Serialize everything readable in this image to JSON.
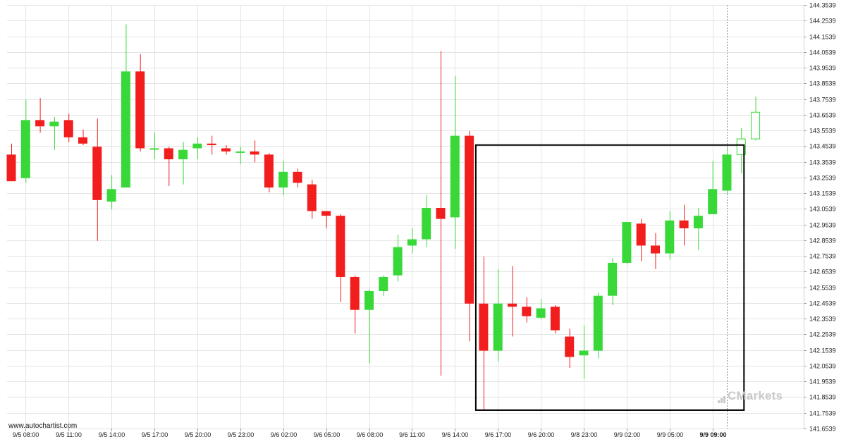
{
  "credit": "www.autochartist.com",
  "watermark": "Markets",
  "watermark_prefix": "C",
  "colors": {
    "up": "#39d839",
    "down": "#f21d1d",
    "grid": "#e4e4e4",
    "pattern": "#000000"
  },
  "chart_data": {
    "type": "candlestick",
    "y_ticks": [
      "144.3539",
      "144.2539",
      "144.1539",
      "144.0539",
      "143.9539",
      "143.8539",
      "143.7539",
      "143.6539",
      "143.5539",
      "143.4539",
      "143.3539",
      "143.2539",
      "143.1539",
      "143.0539",
      "142.9539",
      "142.8539",
      "142.7539",
      "142.6539",
      "142.5539",
      "142.4539",
      "142.3539",
      "142.2539",
      "142.1539",
      "142.0539",
      "141.9539",
      "141.8539",
      "141.7539",
      "141.6539"
    ],
    "ylim": [
      141.6539,
      144.3539
    ],
    "x_ticks": [
      {
        "index": 1,
        "label": "9/5 08:00"
      },
      {
        "index": 4,
        "label": "9/5 11:00"
      },
      {
        "index": 7,
        "label": "9/5 14:00"
      },
      {
        "index": 10,
        "label": "9/5 17:00"
      },
      {
        "index": 13,
        "label": "9/5 20:00"
      },
      {
        "index": 16,
        "label": "9/5 23:00"
      },
      {
        "index": 19,
        "label": "9/6 02:00"
      },
      {
        "index": 22,
        "label": "9/6 05:00"
      },
      {
        "index": 25,
        "label": "9/6 08:00"
      },
      {
        "index": 28,
        "label": "9/6 11:00"
      },
      {
        "index": 31,
        "label": "9/6 14:00"
      },
      {
        "index": 34,
        "label": "9/6 17:00"
      },
      {
        "index": 37,
        "label": "9/6 20:00"
      },
      {
        "index": 40,
        "label": "9/8 23:00"
      },
      {
        "index": 43,
        "label": "9/9 02:00"
      },
      {
        "index": 46,
        "label": "9/9 05:00"
      },
      {
        "index": 49,
        "label": "9/9 09:00",
        "bold": true
      }
    ],
    "candles": [
      {
        "o": 143.4,
        "h": 143.47,
        "l": 143.23,
        "c": 143.23
      },
      {
        "o": 143.25,
        "h": 143.75,
        "l": 143.22,
        "c": 143.62
      },
      {
        "o": 143.62,
        "h": 143.76,
        "l": 143.54,
        "c": 143.58
      },
      {
        "o": 143.58,
        "h": 143.64,
        "l": 143.43,
        "c": 143.61
      },
      {
        "o": 143.62,
        "h": 143.66,
        "l": 143.48,
        "c": 143.51
      },
      {
        "o": 143.51,
        "h": 143.56,
        "l": 143.46,
        "c": 143.47
      },
      {
        "o": 143.45,
        "h": 143.63,
        "l": 142.85,
        "c": 143.11
      },
      {
        "o": 143.1,
        "h": 143.27,
        "l": 143.05,
        "c": 143.18
      },
      {
        "o": 143.19,
        "h": 144.23,
        "l": 143.19,
        "c": 143.93
      },
      {
        "o": 143.93,
        "h": 144.04,
        "l": 143.42,
        "c": 143.44
      },
      {
        "o": 143.44,
        "h": 143.54,
        "l": 143.37,
        "c": 143.44
      },
      {
        "o": 143.44,
        "h": 143.45,
        "l": 143.2,
        "c": 143.37
      },
      {
        "o": 143.37,
        "h": 143.48,
        "l": 143.21,
        "c": 143.43
      },
      {
        "o": 143.44,
        "h": 143.51,
        "l": 143.37,
        "c": 143.47
      },
      {
        "o": 143.47,
        "h": 143.52,
        "l": 143.4,
        "c": 143.46
      },
      {
        "o": 143.44,
        "h": 143.46,
        "l": 143.4,
        "c": 143.42
      },
      {
        "o": 143.42,
        "h": 143.45,
        "l": 143.34,
        "c": 143.42
      },
      {
        "o": 143.42,
        "h": 143.49,
        "l": 143.35,
        "c": 143.4
      },
      {
        "o": 143.4,
        "h": 143.41,
        "l": 143.16,
        "c": 143.19
      },
      {
        "o": 143.19,
        "h": 143.36,
        "l": 143.14,
        "c": 143.29
      },
      {
        "o": 143.29,
        "h": 143.31,
        "l": 143.19,
        "c": 143.22
      },
      {
        "o": 143.21,
        "h": 143.24,
        "l": 142.99,
        "c": 143.04
      },
      {
        "o": 143.04,
        "h": 143.04,
        "l": 142.93,
        "c": 143.01
      },
      {
        "o": 143.01,
        "h": 143.02,
        "l": 142.46,
        "c": 142.62
      },
      {
        "o": 142.62,
        "h": 142.63,
        "l": 142.26,
        "c": 142.41
      },
      {
        "o": 142.41,
        "h": 142.54,
        "l": 142.07,
        "c": 142.53
      },
      {
        "o": 142.53,
        "h": 142.63,
        "l": 142.5,
        "c": 142.62
      },
      {
        "o": 142.63,
        "h": 142.89,
        "l": 142.59,
        "c": 142.81
      },
      {
        "o": 142.82,
        "h": 142.93,
        "l": 142.77,
        "c": 142.86
      },
      {
        "o": 142.86,
        "h": 143.14,
        "l": 142.81,
        "c": 143.06
      },
      {
        "o": 143.06,
        "h": 144.06,
        "l": 141.99,
        "c": 142.99
      },
      {
        "o": 143.0,
        "h": 143.9,
        "l": 142.8,
        "c": 143.52
      },
      {
        "o": 143.52,
        "h": 143.55,
        "l": 142.21,
        "c": 142.45
      },
      {
        "o": 142.45,
        "h": 142.75,
        "l": 141.77,
        "c": 142.15
      },
      {
        "o": 142.15,
        "h": 142.67,
        "l": 142.08,
        "c": 142.45
      },
      {
        "o": 142.45,
        "h": 142.69,
        "l": 142.24,
        "c": 142.43
      },
      {
        "o": 142.43,
        "h": 142.49,
        "l": 142.33,
        "c": 142.37
      },
      {
        "o": 142.36,
        "h": 142.48,
        "l": 142.35,
        "c": 142.42
      },
      {
        "o": 142.43,
        "h": 142.44,
        "l": 142.26,
        "c": 142.28
      },
      {
        "o": 142.24,
        "h": 142.29,
        "l": 142.04,
        "c": 142.11
      },
      {
        "o": 142.12,
        "h": 142.31,
        "l": 141.97,
        "c": 142.15
      },
      {
        "o": 142.15,
        "h": 142.52,
        "l": 142.1,
        "c": 142.5
      },
      {
        "o": 142.5,
        "h": 142.74,
        "l": 142.44,
        "c": 142.71
      },
      {
        "o": 142.71,
        "h": 142.97,
        "l": 142.7,
        "c": 142.97
      },
      {
        "o": 142.96,
        "h": 142.99,
        "l": 142.72,
        "c": 142.82
      },
      {
        "o": 142.82,
        "h": 142.9,
        "l": 142.67,
        "c": 142.77
      },
      {
        "o": 142.77,
        "h": 143.04,
        "l": 142.73,
        "c": 142.98
      },
      {
        "o": 142.98,
        "h": 143.08,
        "l": 142.82,
        "c": 142.93
      },
      {
        "o": 142.93,
        "h": 143.06,
        "l": 142.79,
        "c": 143.01
      },
      {
        "o": 143.02,
        "h": 143.36,
        "l": 143.02,
        "c": 143.18
      },
      {
        "o": 143.17,
        "h": 143.45,
        "l": 143.15,
        "c": 143.4
      },
      {
        "o": 143.4,
        "h": 143.57,
        "l": 143.28,
        "c": 143.5,
        "hollow": true
      },
      {
        "o": 143.5,
        "h": 143.77,
        "l": 143.49,
        "c": 143.67,
        "hollow": true
      }
    ],
    "pattern_box": {
      "start_index": 33,
      "end_index": 51,
      "top": 143.4609,
      "bottom": 141.7709
    },
    "current_time_index": 50
  }
}
